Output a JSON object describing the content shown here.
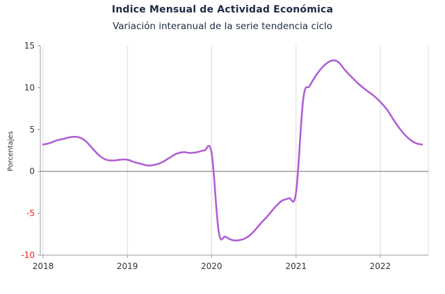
{
  "chart_data": {
    "type": "line",
    "title": "Indice Mensual de  Actividad Económica",
    "subtitle": "Variación interanual de la serie tendencia ciclo",
    "ylabel": "Porcentajes",
    "xlabel": "",
    "ylim": [
      -10,
      15
    ],
    "yticks": [
      "15",
      "10",
      "5",
      "0",
      "-5",
      "-10"
    ],
    "xticks": [
      "2018",
      "2019",
      "2020",
      "2021",
      "2022"
    ],
    "grid": "vertical",
    "line_color": "#b05fd4",
    "negative_tick_color": "#e8251b",
    "series": [
      {
        "x": [
          "2018-01",
          "2018-02",
          "2018-03",
          "2018-04",
          "2018-05",
          "2018-06",
          "2018-07",
          "2018-08",
          "2018-09",
          "2018-10",
          "2018-11",
          "2018-12",
          "2019-01",
          "2019-02",
          "2019-03",
          "2019-04",
          "2019-05",
          "2019-06",
          "2019-07",
          "2019-08",
          "2019-09",
          "2019-10",
          "2019-11",
          "2019-12",
          "2020-01",
          "2020-02",
          "2020-03",
          "2020-04",
          "2020-05",
          "2020-06",
          "2020-07",
          "2020-08",
          "2020-09",
          "2020-10",
          "2020-11",
          "2020-12",
          "2021-01",
          "2021-02",
          "2021-03",
          "2021-04",
          "2021-05",
          "2021-06",
          "2021-07",
          "2021-08",
          "2021-09",
          "2021-10",
          "2021-11",
          "2021-12",
          "2022-01",
          "2022-02",
          "2022-03",
          "2022-04",
          "2022-05",
          "2022-06",
          "2022-07"
        ],
        "values": [
          3.2,
          3.4,
          3.7,
          3.9,
          4.1,
          4.1,
          3.7,
          2.8,
          1.9,
          1.4,
          1.3,
          1.4,
          1.4,
          1.1,
          0.9,
          0.7,
          0.8,
          1.1,
          1.6,
          2.1,
          2.3,
          2.2,
          2.3,
          2.5,
          2.2,
          -7.2,
          -7.8,
          -8.2,
          -8.2,
          -7.9,
          -7.2,
          -6.2,
          -5.3,
          -4.3,
          -3.5,
          -3.2,
          -2.5,
          8.6,
          10.2,
          11.6,
          12.6,
          13.2,
          13.1,
          12.1,
          11.2,
          10.4,
          9.7,
          9.1,
          8.3,
          7.3,
          6.1,
          4.9,
          4.0,
          3.4,
          3.2
        ]
      }
    ]
  }
}
